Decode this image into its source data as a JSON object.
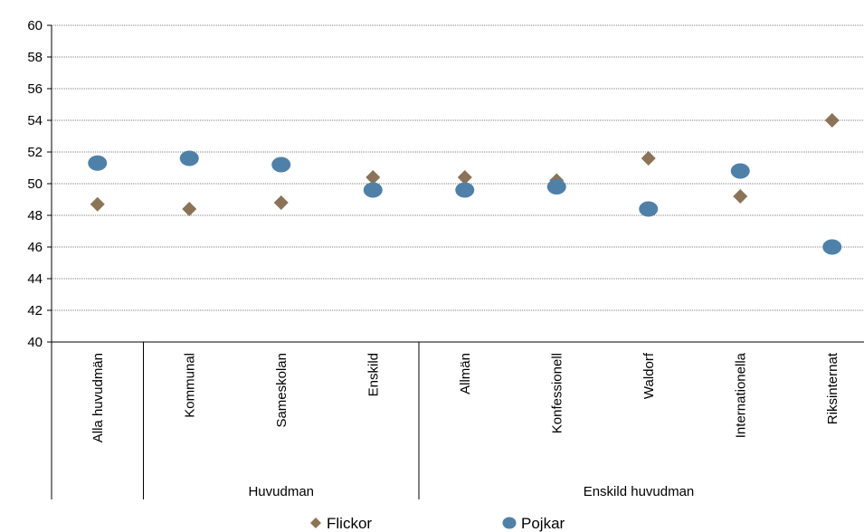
{
  "chart_data": {
    "type": "scatter",
    "categories": [
      "Alla huvudmän",
      "Kommunal",
      "Sameskolan",
      "Enskild",
      "Allmän",
      "Konfessionell",
      "Waldorf",
      "Internationella",
      "Riksinternat"
    ],
    "groups": [
      {
        "label": "",
        "categories": [
          "Alla huvudmän"
        ]
      },
      {
        "label": "Huvudman",
        "categories": [
          "Kommunal",
          "Sameskolan",
          "Enskild"
        ]
      },
      {
        "label": "Enskild huvudman",
        "categories": [
          "Allmän",
          "Konfessionell",
          "Waldorf",
          "Internationella",
          "Riksinternat"
        ]
      }
    ],
    "series": [
      {
        "name": "Flickor",
        "marker": "diamond",
        "color": "#8B7358",
        "values": [
          48.7,
          48.4,
          48.8,
          50.4,
          50.4,
          50.2,
          51.6,
          49.2,
          54.0
        ]
      },
      {
        "name": "Pojkar",
        "marker": "circle",
        "color": "#4F81A8",
        "values": [
          51.3,
          51.6,
          51.2,
          49.6,
          49.6,
          49.8,
          48.4,
          50.8,
          46.0
        ]
      }
    ],
    "ylim": [
      40,
      60
    ],
    "yticks": [
      "40",
      "42",
      "44",
      "46",
      "48",
      "50",
      "52",
      "54",
      "56",
      "58",
      "60"
    ],
    "grid": true,
    "legend_position": "bottom"
  }
}
